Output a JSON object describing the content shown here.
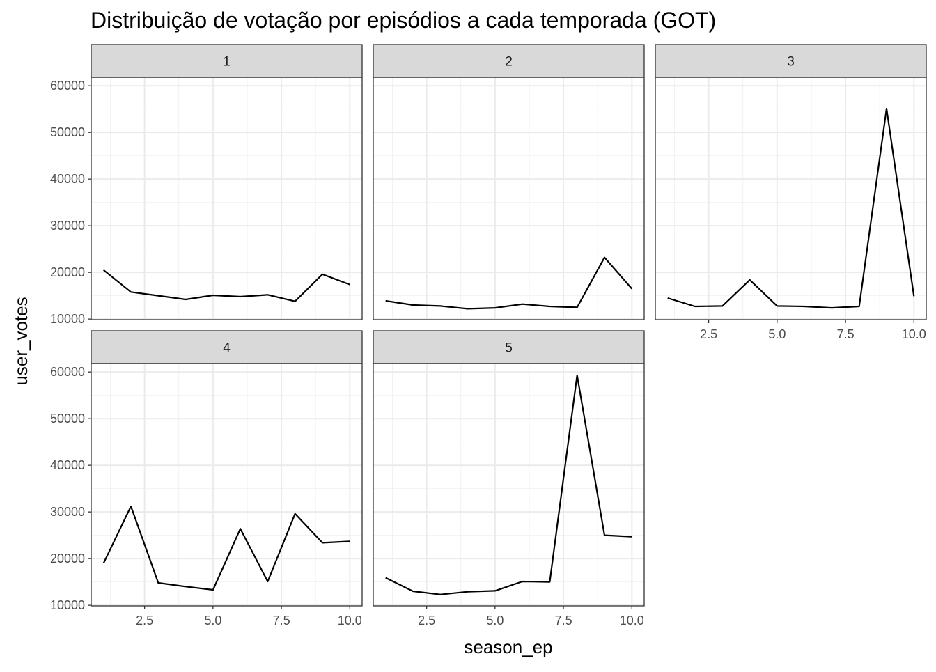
{
  "chart_data": {
    "type": "line",
    "title": "Distribuição de votação por episódios a cada temporada (GOT)",
    "xlabel": "season_ep",
    "ylabel": "user_votes",
    "xlim": [
      0.55,
      10.45
    ],
    "ylim": [
      9870,
      61820
    ],
    "x_ticks": [
      2.5,
      5.0,
      7.5,
      10.0
    ],
    "x_tick_labels": [
      "2.5",
      "5.0",
      "7.5",
      "10.0"
    ],
    "y_ticks": [
      10000,
      20000,
      30000,
      40000,
      50000,
      60000
    ],
    "y_tick_labels": [
      "10000",
      "20000",
      "30000",
      "40000",
      "50000",
      "60000"
    ],
    "grid": true,
    "line_color": "#000000",
    "strip_color": "#d9d9d9",
    "panels": [
      {
        "season": "1",
        "x": [
          1,
          2,
          3,
          4,
          5,
          6,
          7,
          8,
          9,
          10
        ],
        "values": [
          20500,
          15800,
          15000,
          14200,
          15100,
          14800,
          15200,
          13800,
          19600,
          17400
        ]
      },
      {
        "season": "2",
        "x": [
          1,
          2,
          3,
          4,
          5,
          6,
          7,
          8,
          9,
          10
        ],
        "values": [
          13900,
          13000,
          12800,
          12200,
          12400,
          13200,
          12700,
          12500,
          23200,
          16500
        ]
      },
      {
        "season": "3",
        "x": [
          1,
          2,
          3,
          4,
          5,
          6,
          7,
          8,
          9,
          10
        ],
        "values": [
          14500,
          12700,
          12800,
          18400,
          12800,
          12700,
          12400,
          12700,
          55100,
          14900
        ]
      },
      {
        "season": "4",
        "x": [
          1,
          2,
          3,
          4,
          5,
          6,
          7,
          8,
          9,
          10
        ],
        "values": [
          19000,
          31200,
          14800,
          14000,
          13300,
          26400,
          15100,
          29600,
          23400,
          23700
        ]
      },
      {
        "season": "5",
        "x": [
          1,
          2,
          3,
          4,
          5,
          6,
          7,
          8,
          9,
          10
        ],
        "values": [
          15900,
          13000,
          12300,
          12900,
          13100,
          15100,
          15000,
          59300,
          25000,
          24700
        ]
      }
    ]
  }
}
